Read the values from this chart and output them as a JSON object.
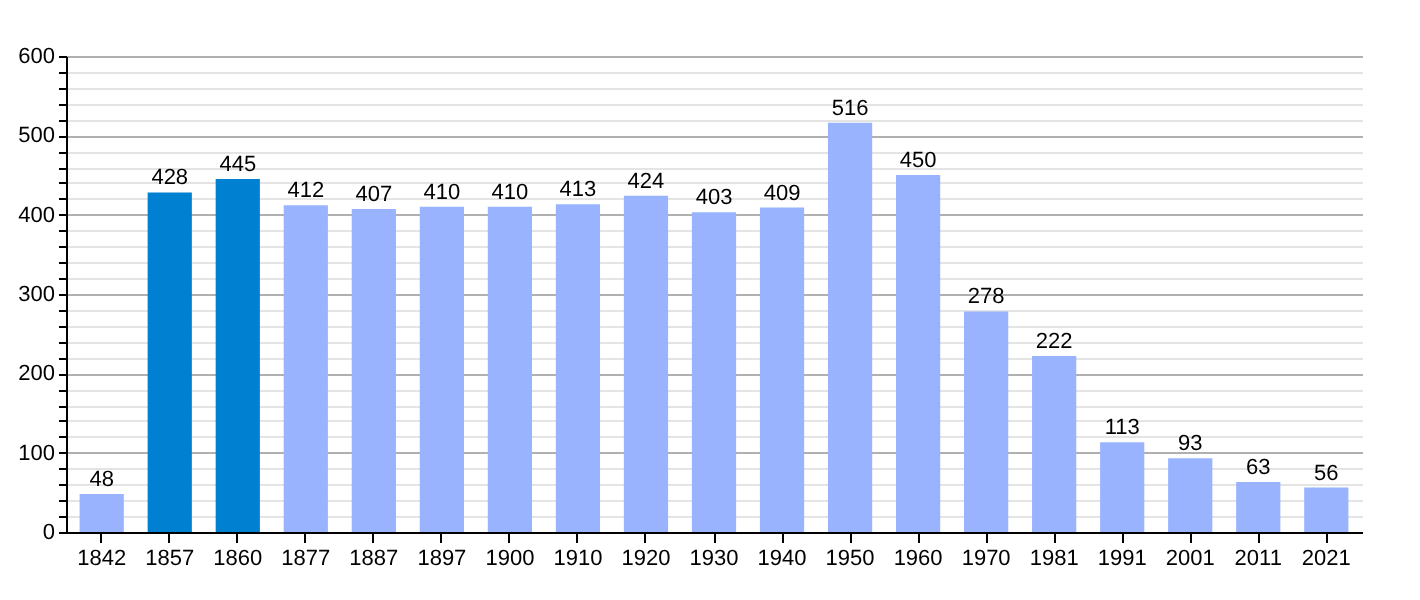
{
  "chart_data": {
    "type": "bar",
    "categories": [
      "1842",
      "1857",
      "1860",
      "1877",
      "1887",
      "1897",
      "1900",
      "1910",
      "1920",
      "1930",
      "1940",
      "1950",
      "1960",
      "1970",
      "1981",
      "1991",
      "2001",
      "2011",
      "2021"
    ],
    "values": [
      48,
      428,
      445,
      412,
      407,
      410,
      410,
      413,
      424,
      403,
      409,
      516,
      450,
      278,
      222,
      113,
      93,
      63,
      56
    ],
    "colors": [
      "#99b3ff",
      "#0080d0",
      "#0080d0",
      "#99b3ff",
      "#99b3ff",
      "#99b3ff",
      "#99b3ff",
      "#99b3ff",
      "#99b3ff",
      "#99b3ff",
      "#99b3ff",
      "#99b3ff",
      "#99b3ff",
      "#99b3ff",
      "#99b3ff",
      "#99b3ff",
      "#99b3ff",
      "#99b3ff",
      "#99b3ff"
    ],
    "ylim": [
      0,
      600
    ],
    "yticks": [
      0,
      {
        "value": 20,
        "label": null
      },
      {
        "value": 40,
        "label": null
      },
      {
        "value": 60,
        "label": null
      },
      {
        "value": 80,
        "label": null
      },
      100,
      {
        "value": 120,
        "label": null
      },
      {
        "value": 140,
        "label": null
      },
      {
        "value": 160,
        "label": null
      },
      {
        "value": 180,
        "label": null
      },
      200,
      {
        "value": 220,
        "label": null
      },
      {
        "value": 240,
        "label": null
      },
      {
        "value": 260,
        "label": null
      },
      {
        "value": 280,
        "label": null
      },
      300,
      {
        "value": 320,
        "label": null
      },
      {
        "value": 340,
        "label": null
      },
      {
        "value": 360,
        "label": null
      },
      {
        "value": 380,
        "label": null
      },
      400,
      {
        "value": 420,
        "label": null
      },
      {
        "value": 440,
        "label": null
      },
      {
        "value": 460,
        "label": null
      },
      {
        "value": 480,
        "label": null
      },
      500,
      {
        "value": 520,
        "label": null
      },
      {
        "value": 540,
        "label": null
      },
      {
        "value": 560,
        "label": null
      },
      {
        "value": 580,
        "label": null
      },
      600
    ],
    "grid": "y",
    "data_labels": true
  }
}
